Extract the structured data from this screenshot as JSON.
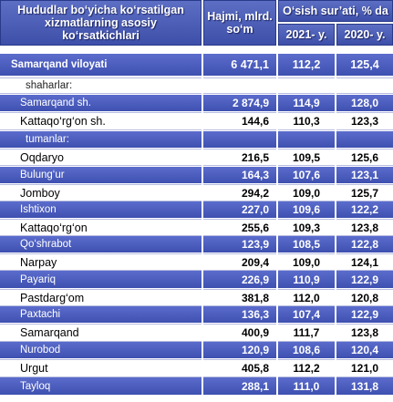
{
  "header": {
    "name": "Hududlar bo‘yicha ko‘rsatilgan xizmatlarning asosiy ko‘rsatkichlari",
    "volume": "Hajmi, mlrd. so‘m",
    "growth": "O‘sish sur’ati, % da",
    "year1": "2021- y.",
    "year2": "2020- y."
  },
  "total": {
    "name": "Samarqand viloyati",
    "volume": "6 471,1",
    "g2021": "112,2",
    "g2020": "125,4"
  },
  "cities_label": "shaharlar:",
  "cities": [
    {
      "name": "Samarqand sh.",
      "volume": "2 874,9",
      "g2021": "114,9",
      "g2020": "128,0"
    },
    {
      "name": "Kattaqo‘rg‘on sh.",
      "volume": "144,6",
      "g2021": "110,3",
      "g2020": "123,3"
    }
  ],
  "districts_label": "tumanlar:",
  "districts": [
    {
      "name": "Oqdaryo",
      "volume": "216,5",
      "g2021": "109,5",
      "g2020": "125,6"
    },
    {
      "name": "Bulung‘ur",
      "volume": "164,3",
      "g2021": "107,6",
      "g2020": "123,1"
    },
    {
      "name": "Jomboy",
      "volume": "294,2",
      "g2021": "109,0",
      "g2020": "125,7"
    },
    {
      "name": "Ishtixon",
      "volume": "227,0",
      "g2021": "109,6",
      "g2020": "122,2"
    },
    {
      "name": "Kattaqo‘rg‘on",
      "volume": "255,6",
      "g2021": "109,3",
      "g2020": "123,8"
    },
    {
      "name": "Qo‘shrabot",
      "volume": "123,9",
      "g2021": "108,5",
      "g2020": "122,8"
    },
    {
      "name": "Narpay",
      "volume": "209,4",
      "g2021": "109,0",
      "g2020": "124,1"
    },
    {
      "name": "Payariq",
      "volume": "226,9",
      "g2021": "110,9",
      "g2020": "122,9"
    },
    {
      "name": "Pastdarg‘om",
      "volume": "381,8",
      "g2021": "112,0",
      "g2020": "120,8"
    },
    {
      "name": "Paxtachi",
      "volume": "136,3",
      "g2021": "107,4",
      "g2020": "122,9"
    },
    {
      "name": "Samarqand",
      "volume": "400,9",
      "g2021": "111,7",
      "g2020": "123,8"
    },
    {
      "name": "Nurobod",
      "volume": "120,9",
      "g2021": "108,6",
      "g2020": "120,4"
    },
    {
      "name": "Urgut",
      "volume": "405,8",
      "g2021": "112,2",
      "g2020": "121,0"
    },
    {
      "name": "Tayloq",
      "volume": "288,1",
      "g2021": "111,0",
      "g2020": "131,8"
    }
  ]
}
